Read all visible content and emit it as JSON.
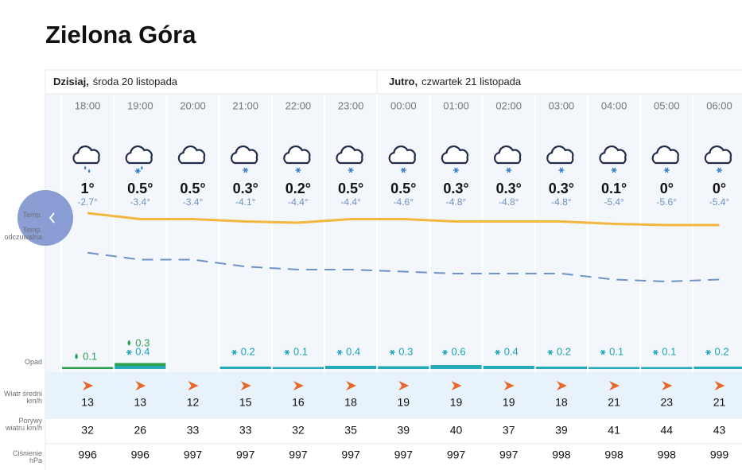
{
  "header": {
    "title": "Zielona Góra"
  },
  "days": [
    {
      "label": "Dzisiaj,",
      "date": "środa 20 listopada"
    },
    {
      "label": "Jutro,",
      "date": "czwartek 21 listopada"
    }
  ],
  "row_labels": {
    "temp": "Temp.",
    "feels": "Temp. odczuwalna",
    "precip": "Opad",
    "wind": "Wiatr średni km/h",
    "gusts": "Porywy wiatru km/h",
    "pressure": "Ciśnienie hPa"
  },
  "hours": [
    {
      "time": "18:00",
      "icon": "rain",
      "temp": 1,
      "temp_label": "1°",
      "feels": -2.7,
      "feels_label": "-2.7°",
      "rain": 0.1,
      "snow": null,
      "wind": 13,
      "gusts": 32,
      "pressure": 996
    },
    {
      "time": "19:00",
      "icon": "sleet",
      "temp": 0.5,
      "temp_label": "0.5°",
      "feels": -3.4,
      "feels_label": "-3.4°",
      "rain": 0.3,
      "snow": 0.4,
      "wind": 13,
      "gusts": 26,
      "pressure": 996
    },
    {
      "time": "20:00",
      "icon": "cloud",
      "temp": 0.5,
      "temp_label": "0.5°",
      "feels": -3.4,
      "feels_label": "-3.4°",
      "rain": null,
      "snow": null,
      "wind": 12,
      "gusts": 33,
      "pressure": 997
    },
    {
      "time": "21:00",
      "icon": "snow",
      "temp": 0.3,
      "temp_label": "0.3°",
      "feels": -4.1,
      "feels_label": "-4.1°",
      "rain": null,
      "snow": 0.2,
      "wind": 15,
      "gusts": 33,
      "pressure": 997
    },
    {
      "time": "22:00",
      "icon": "snow",
      "temp": 0.2,
      "temp_label": "0.2°",
      "feels": -4.4,
      "feels_label": "-4.4°",
      "rain": null,
      "snow": 0.1,
      "wind": 16,
      "gusts": 32,
      "pressure": 997
    },
    {
      "time": "23:00",
      "icon": "snow",
      "temp": 0.5,
      "temp_label": "0.5°",
      "feels": -4.4,
      "feels_label": "-4.4°",
      "rain": null,
      "snow": 0.4,
      "wind": 18,
      "gusts": 35,
      "pressure": 997
    },
    {
      "time": "00:00",
      "icon": "snow",
      "temp": 0.5,
      "temp_label": "0.5°",
      "feels": -4.6,
      "feels_label": "-4.6°",
      "rain": null,
      "snow": 0.3,
      "wind": 19,
      "gusts": 39,
      "pressure": 997
    },
    {
      "time": "01:00",
      "icon": "snow",
      "temp": 0.3,
      "temp_label": "0.3°",
      "feels": -4.8,
      "feels_label": "-4.8°",
      "rain": null,
      "snow": 0.6,
      "wind": 19,
      "gusts": 40,
      "pressure": 997
    },
    {
      "time": "02:00",
      "icon": "snow",
      "temp": 0.3,
      "temp_label": "0.3°",
      "feels": -4.8,
      "feels_label": "-4.8°",
      "rain": null,
      "snow": 0.4,
      "wind": 19,
      "gusts": 37,
      "pressure": 997
    },
    {
      "time": "03:00",
      "icon": "snow",
      "temp": 0.3,
      "temp_label": "0.3°",
      "feels": -4.8,
      "feels_label": "-4.8°",
      "rain": null,
      "snow": 0.2,
      "wind": 18,
      "gusts": 39,
      "pressure": 998
    },
    {
      "time": "04:00",
      "icon": "snow",
      "temp": 0.1,
      "temp_label": "0.1°",
      "feels": -5.4,
      "feels_label": "-5.4°",
      "rain": null,
      "snow": 0.1,
      "wind": 21,
      "gusts": 41,
      "pressure": 998
    },
    {
      "time": "05:00",
      "icon": "snow",
      "temp": 0,
      "temp_label": "0°",
      "feels": -5.6,
      "feels_label": "-5.6°",
      "rain": null,
      "snow": 0.1,
      "wind": 23,
      "gusts": 44,
      "pressure": 998
    },
    {
      "time": "06:00",
      "icon": "snow",
      "temp": 0,
      "temp_label": "0°",
      "feels": -5.4,
      "feels_label": "-5.4°",
      "rain": null,
      "snow": 0.2,
      "wind": 21,
      "gusts": 43,
      "pressure": 999
    }
  ]
}
